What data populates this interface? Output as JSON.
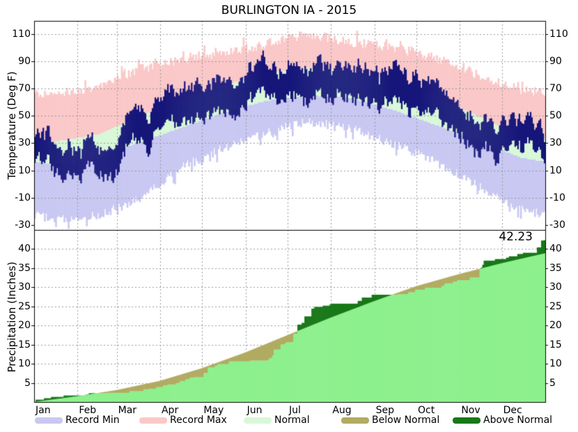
{
  "title": "BURLINGTON IA - 2015",
  "precip_total_label": "42.23",
  "axes": {
    "temp_axis_label": "Temperature (Deg F)",
    "precip_axis_label": "Precipitation (Inches)"
  },
  "legend": [
    {
      "label": "Record Min",
      "color": "#c8c8f2"
    },
    {
      "label": "Record Max",
      "color": "#fac8c8"
    },
    {
      "label": "Normal",
      "color": "#d8f8d8"
    },
    {
      "label": "Below Normal",
      "color": "#b1ab62"
    },
    {
      "label": "Above Normal",
      "color": "#187818"
    }
  ],
  "colors": {
    "record_min_band": "#c8c8f2",
    "record_max_band": "#fac8c8",
    "normal_band": "#d8f8d8",
    "actual_temp_bars": "#16167a",
    "precip_actual_fill": "#8df08d",
    "precip_below_normal": "#b1ab62",
    "precip_above_normal": "#187818",
    "gridline": "#999999",
    "border": "#000000",
    "background": "#ffffff",
    "text": "#000000"
  },
  "chart_data": {
    "type": "area",
    "title": "BURLINGTON IA - 2015",
    "grid": "dashed, gray, at month boundaries and labeled y ticks",
    "legend_position": "bottom",
    "months": [
      "Jan",
      "Feb",
      "Mar",
      "Apr",
      "May",
      "Jun",
      "Jul",
      "Aug",
      "Sep",
      "Oct",
      "Nov",
      "Dec"
    ],
    "month_start_day": [
      0,
      31,
      59,
      90,
      120,
      151,
      181,
      212,
      243,
      273,
      304,
      334
    ],
    "days": 365,
    "temperature": {
      "ylabel": "Temperature (Deg F)",
      "yticks": [
        110,
        90,
        70,
        50,
        30,
        10,
        -10,
        -30
      ],
      "ylim": [
        -33.7,
        120.2
      ],
      "series_description": [
        "record_min_to_record_max bands",
        "normal_low_to_normal_high band",
        "daily actual min-max bars"
      ],
      "monthly": {
        "record_high": [
          64,
          70,
          84,
          91,
          96,
          102,
          110,
          104,
          100,
          92,
          79,
          69
        ],
        "normal_high": [
          31,
          36,
          49,
          62,
          72,
          81,
          85,
          83,
          76,
          64,
          49,
          35
        ],
        "normal_low": [
          14,
          19,
          30,
          41,
          52,
          61,
          65,
          63,
          54,
          43,
          31,
          19
        ],
        "record_low": [
          -26,
          -23,
          -12,
          12,
          26,
          38,
          46,
          41,
          29,
          16,
          -2,
          -19
        ],
        "actual_anomaly": [
          1,
          -7,
          1,
          2,
          1,
          2,
          0,
          0,
          3,
          1,
          2,
          8
        ]
      },
      "noise": {
        "seed": 42,
        "walk_persistence": 0.86,
        "walk_step": 5.2,
        "record_jitter": 3.5
      }
    },
    "precipitation": {
      "ylabel": "Precipitation (Inches)",
      "yticks": [
        40,
        35,
        30,
        25,
        20,
        15,
        10,
        5
      ],
      "ylim": [
        0,
        44.9
      ],
      "annual_total_actual": 42.23,
      "annual_total_normal": 38.8,
      "annotation": "42.23",
      "series_description": [
        "cumulative actual precip (light green)",
        "deficit vs normal (olive = Below Normal)",
        "surplus vs normal (dark green = Above Normal)"
      ],
      "cum_actual_month_start": [
        0,
        1.7,
        2.4,
        3.9,
        6.5,
        10.6,
        15.6,
        25.5,
        28.0,
        29.3,
        31.8,
        37.3
      ],
      "cum_actual_year_end": 42.23,
      "cum_normal_month_start": [
        0,
        1.5,
        3.1,
        5.5,
        8.8,
        12.9,
        17.4,
        22.0,
        26.3,
        30.2,
        33.4,
        36.2
      ],
      "cum_normal_year_end": 38.8,
      "events": [
        {
          "day": 171,
          "amount": 1.5
        },
        {
          "day": 176,
          "amount": 1.3
        },
        {
          "day": 185,
          "amount": 2.2
        },
        {
          "day": 188,
          "amount": 2.4
        },
        {
          "day": 193,
          "amount": 1.7
        },
        {
          "day": 198,
          "amount": 1.3
        },
        {
          "day": 318,
          "amount": 2.2
        },
        {
          "day": 345,
          "amount": 0.6
        },
        {
          "day": 359,
          "amount": 1.4
        },
        {
          "day": 362,
          "amount": 1.8
        }
      ],
      "noise": {
        "seed": 7,
        "rain_days_min": 4,
        "rain_days_max": 8
      }
    }
  }
}
